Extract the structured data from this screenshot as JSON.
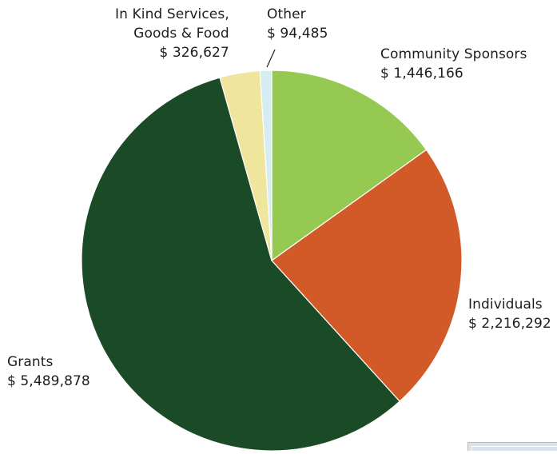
{
  "chart_data": {
    "type": "pie",
    "slices": [
      {
        "name": "Community Sponsors",
        "label": "Community Sponsors",
        "value_text": "$ 1,446,166",
        "value": 1446166,
        "color": "#96c952"
      },
      {
        "name": "Individuals",
        "label": "Individuals",
        "value_text": "$ 2,216,292",
        "value": 2216292,
        "color": "#d15a28"
      },
      {
        "name": "Grants",
        "label": "Grants",
        "value_text": "$ 5,489,878",
        "value": 5489878,
        "color": "#1b4a26"
      },
      {
        "name": "In Kind Services, Goods & Food",
        "label_line1": "In Kind Services,",
        "label_line2": "Goods & Food",
        "value_text": "$ 326,627",
        "value": 326627,
        "color": "#f0e59d"
      },
      {
        "name": "Other",
        "label": "Other",
        "value_text": "$ 94,485",
        "value": 94485,
        "color": "#d5ecf1"
      }
    ],
    "start_angle": "12 o'clock",
    "direction": "clockwise",
    "legend": "none"
  }
}
